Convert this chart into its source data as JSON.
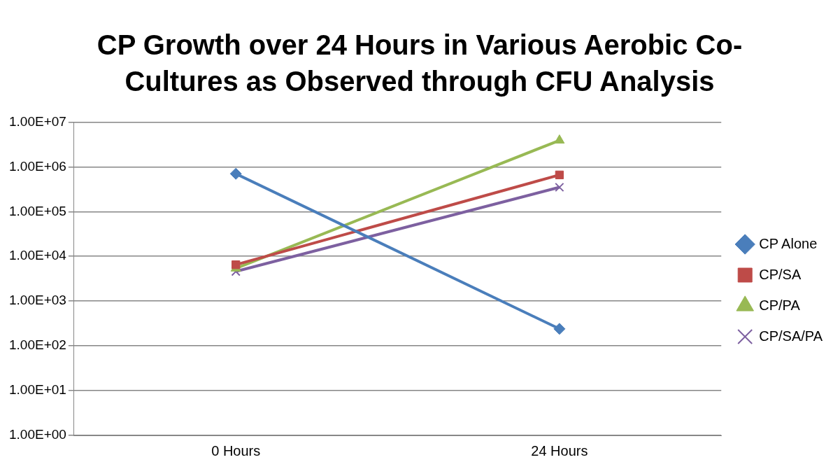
{
  "chart_data": {
    "type": "line",
    "title": "CP Growth over 24 Hours in Various Aerobic Co-Cultures as Observed through CFU Analysis",
    "categories": [
      "0 Hours",
      "24 Hours"
    ],
    "series": [
      {
        "name": "CP Alone",
        "color": "#4a7ebb",
        "marker": "diamond",
        "values": [
          700000,
          240
        ]
      },
      {
        "name": "CP/SA",
        "color": "#be4b48",
        "marker": "square",
        "values": [
          6500,
          660000
        ]
      },
      {
        "name": "CP/PA",
        "color": "#98b954",
        "marker": "triangle",
        "values": [
          5400,
          3900000
        ]
      },
      {
        "name": "CP/SA/PA",
        "color": "#7d60a0",
        "marker": "cross",
        "values": [
          4600,
          350000
        ]
      }
    ],
    "log": "y",
    "ylim": [
      1,
      10000000
    ],
    "yticks": [
      {
        "value": 1,
        "label": "1.00E+00"
      },
      {
        "value": 10,
        "label": "1.00E+01"
      },
      {
        "value": 100,
        "label": "1.00E+02"
      },
      {
        "value": 1000,
        "label": "1.00E+03"
      },
      {
        "value": 10000,
        "label": "1.00E+04"
      },
      {
        "value": 100000,
        "label": "1.00E+05"
      },
      {
        "value": 1000000,
        "label": "1.00E+06"
      },
      {
        "value": 10000000,
        "label": "1.00E+07"
      }
    ],
    "grid": "y",
    "legend": "right",
    "line_style": "solid"
  }
}
